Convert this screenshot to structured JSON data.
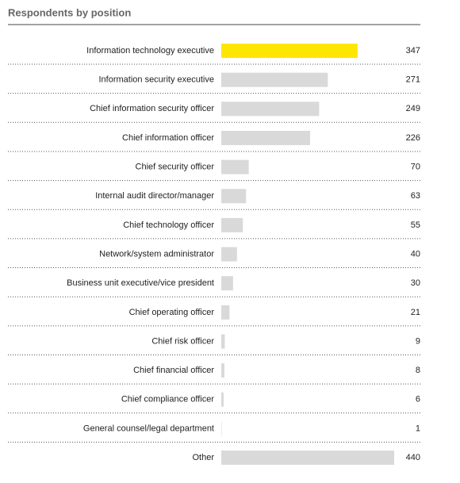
{
  "chart_data": {
    "type": "bar",
    "orientation": "horizontal",
    "title": "Respondents by position",
    "categories": [
      "Information technology executive",
      "Information security executive",
      "Chief information security officer",
      "Chief information officer",
      "Chief security officer",
      "Internal audit director/manager",
      "Chief technology officer",
      "Network/system administrator",
      "Business unit executive/vice president",
      "Chief operating officer",
      "Chief risk officer",
      "Chief financial officer",
      "Chief compliance officer",
      "General counsel/legal department",
      "Other"
    ],
    "values": [
      347,
      271,
      249,
      226,
      70,
      63,
      55,
      40,
      30,
      21,
      9,
      8,
      6,
      1,
      440
    ],
    "colors": [
      "#ffe600",
      "#d9d9d9",
      "#d9d9d9",
      "#d9d9d9",
      "#d9d9d9",
      "#d9d9d9",
      "#d9d9d9",
      "#d9d9d9",
      "#d9d9d9",
      "#d9d9d9",
      "#d9d9d9",
      "#d9d9d9",
      "#d9d9d9",
      "#d9d9d9",
      "#d9d9d9"
    ]
  }
}
